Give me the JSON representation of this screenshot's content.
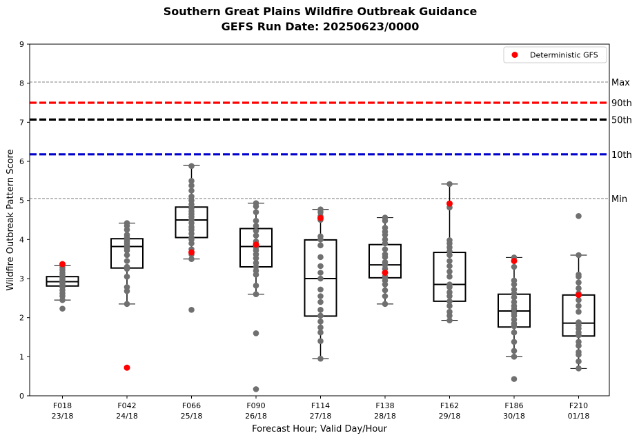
{
  "chart_data": {
    "type": "box",
    "title": "Southern Great Plains Wildfire Outbreak Guidance",
    "subtitle": "GEFS Run Date: 20250623/0000",
    "xlabel": "Forecast Hour; Valid Day/Hour",
    "ylabel": "Wildfire Outbreak Pattern Score",
    "ylim": [
      0,
      9
    ],
    "yticks": [
      "0",
      "1",
      "2",
      "3",
      "4",
      "5",
      "6",
      "7",
      "8",
      "9"
    ],
    "grid": false,
    "legend": {
      "position": "top-right",
      "entries": [
        "Deterministic GFS"
      ]
    },
    "categories": [
      {
        "line1": "F018",
        "line2": "23/18"
      },
      {
        "line1": "F042",
        "line2": "24/18"
      },
      {
        "line1": "F066",
        "line2": "25/18"
      },
      {
        "line1": "F090",
        "line2": "26/18"
      },
      {
        "line1": "F114",
        "line2": "27/18"
      },
      {
        "line1": "F138",
        "line2": "28/18"
      },
      {
        "line1": "F162",
        "line2": "29/18"
      },
      {
        "line1": "F186",
        "line2": "30/18"
      },
      {
        "line1": "F210",
        "line2": "01/18"
      }
    ],
    "reference_lines": [
      {
        "label": "Max",
        "value": 8.03,
        "style": "thin-dashed",
        "color": "#808080"
      },
      {
        "label": "90th",
        "value": 7.5,
        "style": "thick-dashed",
        "color": "#ff0000"
      },
      {
        "label": "50th",
        "value": 7.07,
        "style": "thick-dashed",
        "color": "#000000"
      },
      {
        "label": "10th",
        "value": 6.18,
        "style": "thick-dashed",
        "color": "#0000cc"
      },
      {
        "label": "Min",
        "value": 5.05,
        "style": "thin-dashed",
        "color": "#808080"
      }
    ],
    "boxes": [
      {
        "whisker_low": 2.45,
        "q1": 2.81,
        "median": 2.92,
        "q3": 3.05,
        "whisker_high": 3.33,
        "outliers": [
          2.23
        ]
      },
      {
        "whisker_low": 2.35,
        "q1": 3.27,
        "median": 3.82,
        "q3": 4.02,
        "whisker_high": 4.42,
        "outliers": []
      },
      {
        "whisker_low": 3.5,
        "q1": 4.05,
        "median": 4.5,
        "q3": 4.83,
        "whisker_high": 5.9,
        "outliers": [
          2.2
        ]
      },
      {
        "whisker_low": 2.6,
        "q1": 3.3,
        "median": 3.82,
        "q3": 4.28,
        "whisker_high": 4.93,
        "outliers": [
          1.6,
          0.17
        ]
      },
      {
        "whisker_low": 0.95,
        "q1": 2.04,
        "median": 3.0,
        "q3": 3.99,
        "whisker_high": 4.77,
        "outliers": []
      },
      {
        "whisker_low": 2.35,
        "q1": 3.02,
        "median": 3.35,
        "q3": 3.87,
        "whisker_high": 4.56,
        "outliers": []
      },
      {
        "whisker_low": 1.93,
        "q1": 2.42,
        "median": 2.85,
        "q3": 3.67,
        "whisker_high": 5.42,
        "outliers": []
      },
      {
        "whisker_low": 1.0,
        "q1": 1.76,
        "median": 2.17,
        "q3": 2.6,
        "whisker_high": 3.54,
        "outliers": [
          0.43
        ]
      },
      {
        "whisker_low": 0.7,
        "q1": 1.53,
        "median": 1.86,
        "q3": 2.58,
        "whisker_high": 3.6,
        "outliers": [
          4.6
        ]
      }
    ],
    "members": [
      [
        2.45,
        2.55,
        2.62,
        2.7,
        2.78,
        2.82,
        2.86,
        2.9,
        2.92,
        2.95,
        2.98,
        3.02,
        3.05,
        3.1,
        3.15,
        3.22,
        3.28,
        3.33,
        2.23
      ],
      [
        2.35,
        2.68,
        2.78,
        3.05,
        3.25,
        3.3,
        3.45,
        3.6,
        3.72,
        3.78,
        3.82,
        3.85,
        3.9,
        3.95,
        4.0,
        4.05,
        4.12,
        4.25,
        4.35,
        4.42
      ],
      [
        3.5,
        3.62,
        3.75,
        3.9,
        4.0,
        4.05,
        4.15,
        4.25,
        4.32,
        4.42,
        4.5,
        4.58,
        4.65,
        4.72,
        4.8,
        4.9,
        5.0,
        5.1,
        5.25,
        5.38,
        5.5,
        5.88,
        2.2
      ],
      [
        2.6,
        2.82,
        3.1,
        3.2,
        3.3,
        3.4,
        3.52,
        3.62,
        3.72,
        3.8,
        3.86,
        3.95,
        4.1,
        4.22,
        4.35,
        4.48,
        4.7,
        4.85,
        4.93,
        1.6,
        0.17
      ],
      [
        0.95,
        1.4,
        1.62,
        1.75,
        1.9,
        2.05,
        2.2,
        2.4,
        2.55,
        2.72,
        3.0,
        3.15,
        3.32,
        3.55,
        3.85,
        4.0,
        4.08,
        4.5,
        4.6,
        4.7,
        4.77
      ],
      [
        2.35,
        2.55,
        2.7,
        2.85,
        2.95,
        3.05,
        3.15,
        3.25,
        3.35,
        3.42,
        3.55,
        3.62,
        3.75,
        3.9,
        4.0,
        4.12,
        4.2,
        4.3,
        4.48,
        4.56
      ],
      [
        1.93,
        2.05,
        2.15,
        2.3,
        2.42,
        2.55,
        2.65,
        2.78,
        2.85,
        3.05,
        3.18,
        3.32,
        3.45,
        3.6,
        3.7,
        3.8,
        3.9,
        3.98,
        4.82,
        5.42
      ],
      [
        1.0,
        1.15,
        1.38,
        1.62,
        1.78,
        1.85,
        1.95,
        2.05,
        2.12,
        2.22,
        2.3,
        2.4,
        2.52,
        2.62,
        2.72,
        2.85,
        2.95,
        3.3,
        3.54,
        0.43
      ],
      [
        0.7,
        0.88,
        1.05,
        1.12,
        1.28,
        1.38,
        1.55,
        1.62,
        1.72,
        1.8,
        1.88,
        2.15,
        2.3,
        2.45,
        2.62,
        2.75,
        2.9,
        3.05,
        3.1,
        3.6,
        4.6
      ]
    ],
    "deterministic_gfs": [
      3.37,
      0.72,
      3.67,
      3.87,
      4.55,
      3.15,
      4.92,
      3.45,
      2.58
    ],
    "colors": {
      "member": "#707070",
      "deterministic": "#ff0000",
      "box": "#000000"
    }
  }
}
